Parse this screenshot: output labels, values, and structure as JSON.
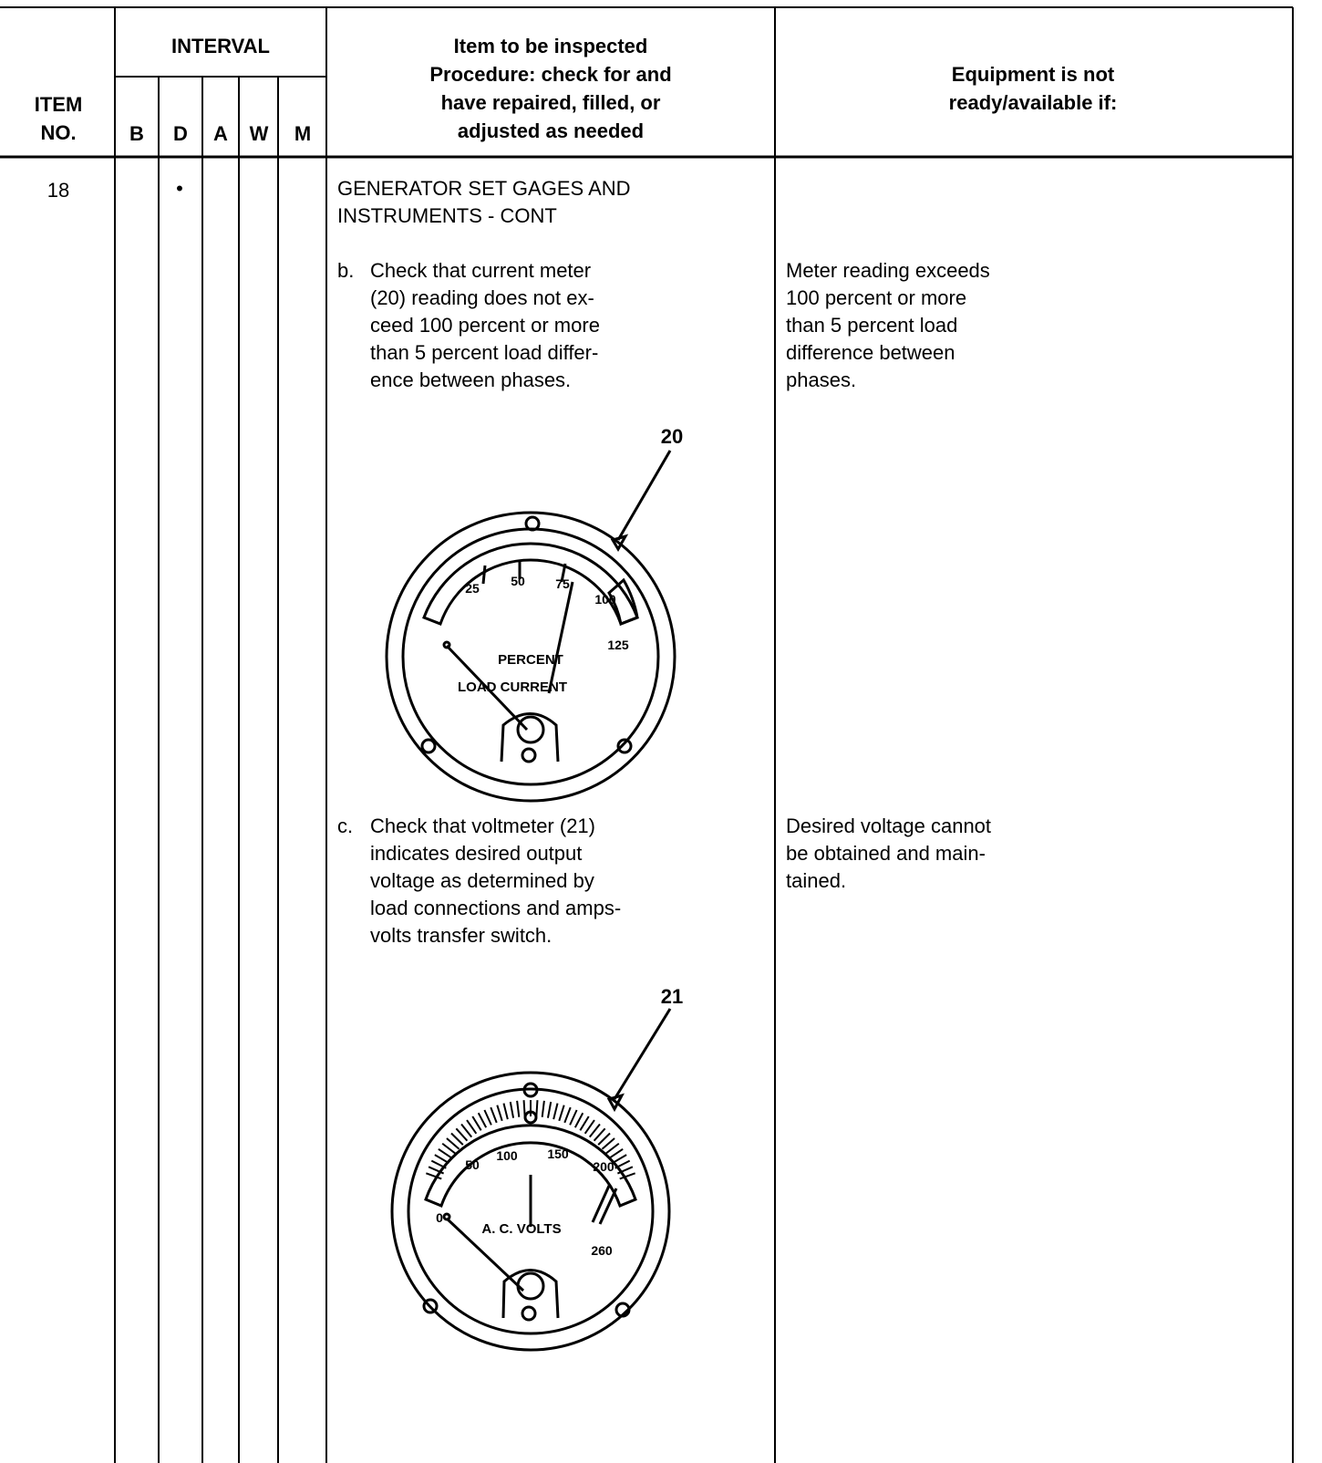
{
  "header": {
    "item_no": [
      "ITEM",
      "NO."
    ],
    "interval": "INTERVAL",
    "intervals": [
      "B",
      "D",
      "A",
      "W",
      "M"
    ],
    "procedure": [
      "Item to be inspected",
      "Procedure: check for and",
      "have repaired, filled, or",
      "adjusted as needed"
    ],
    "not_ready": [
      "Equipment is not",
      "ready/available if:"
    ]
  },
  "row": {
    "item": "18",
    "interval_mark": "•",
    "title": [
      "GENERATOR SET GAGES AND",
      "INSTRUMENTS - CONT"
    ],
    "steps": [
      {
        "letter": "b.",
        "procedure": [
          "Check that current meter",
          "(20) reading does not ex-",
          "ceed 100 percent or more",
          "than 5 percent load differ-",
          "ence between phases."
        ],
        "not_ready": [
          "Meter reading exceeds",
          "100 percent or more",
          "than 5 percent load",
          "difference between",
          "phases."
        ]
      },
      {
        "letter": "c.",
        "procedure": [
          "Check that voltmeter (21)",
          "indicates desired output",
          "voltage as determined by",
          "load connections and amps-",
          "volts transfer switch."
        ],
        "not_ready": [
          "Desired voltage cannot",
          "be obtained and main-",
          "tained."
        ]
      }
    ],
    "figures": [
      {
        "callout": "20",
        "scale": [
          "25",
          "50",
          "75",
          "100",
          "125"
        ],
        "legend": [
          "PERCENT",
          "LOAD CURRENT"
        ]
      },
      {
        "callout": "21",
        "scale": [
          "0",
          "50",
          "100",
          "150",
          "200",
          "260"
        ],
        "legend": [
          "A. C. VOLTS"
        ]
      }
    ]
  }
}
